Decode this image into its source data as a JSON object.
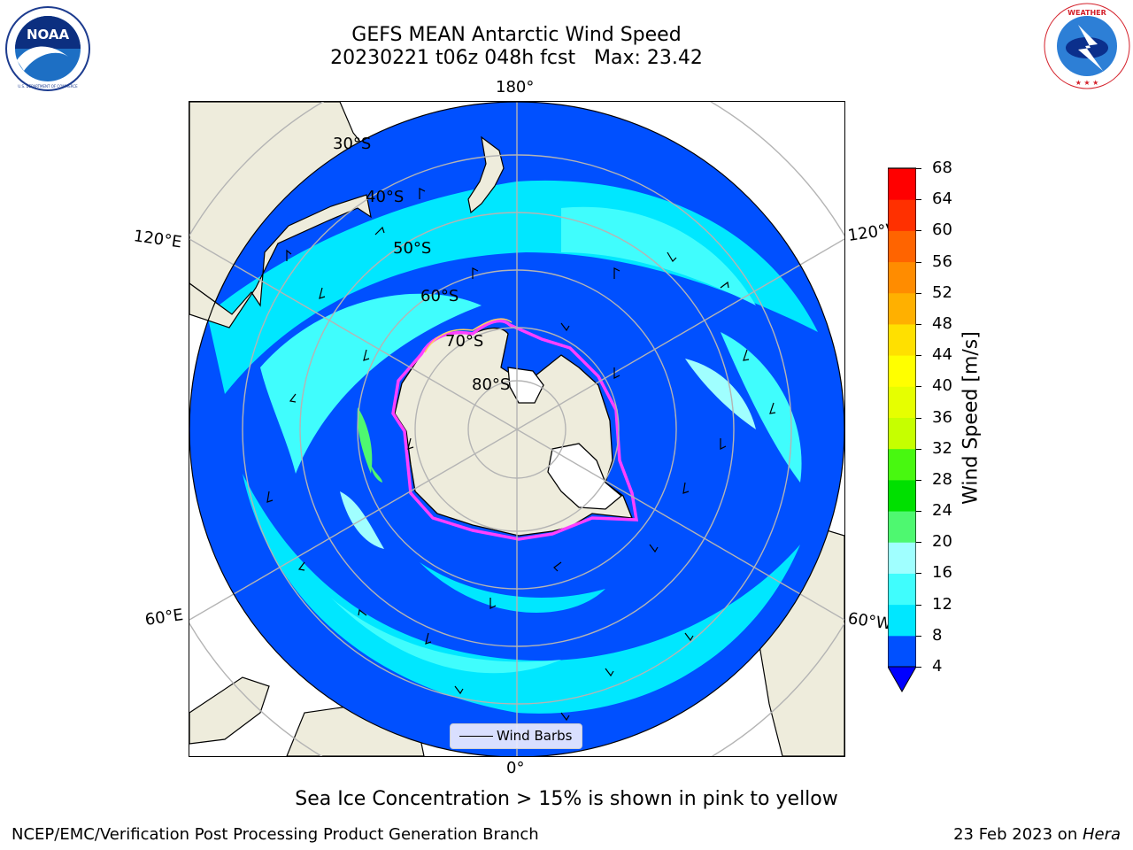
{
  "title": {
    "line1": "GEFS MEAN Antarctic Wind Speed",
    "line2": "20230221 t06z 048h fcst   Max: 23.42"
  },
  "logos": {
    "left": {
      "name": "noaa-logo",
      "text": "NOAA",
      "ring_text": "NATIONAL OCEANIC AND ATMOSPHERIC ADMINISTRATION · U.S. DEPARTMENT OF COMMERCE"
    },
    "right": {
      "name": "nws-logo",
      "ring_text": "NATIONAL WEATHER SERVICE"
    }
  },
  "map": {
    "projection": "south-polar-stereographic",
    "longitude_labels": {
      "top": "180°",
      "bottom": "0°",
      "upper_left": "120°E",
      "upper_right": "120°W",
      "lower_left": "60°E",
      "lower_right": "60°W"
    },
    "latitude_labels": [
      "30°S",
      "40°S",
      "50°S",
      "60°S",
      "70°S",
      "80°S"
    ],
    "legend": {
      "label": "Wind Barbs"
    },
    "colors": {
      "land": "#eeecdc",
      "ice_shelf": "#ffffff",
      "gridline": "#b4b4b4",
      "sea_ice_edge": [
        "#ff40ff",
        "#ffd060"
      ]
    }
  },
  "colorbar": {
    "label": "Wind Speed [m/s]",
    "ticks": [
      "4",
      "8",
      "12",
      "16",
      "20",
      "24",
      "28",
      "32",
      "36",
      "40",
      "44",
      "48",
      "52",
      "56",
      "60",
      "64",
      "68"
    ],
    "colors": [
      "#0050ff",
      "#00e7ff",
      "#40fdfd",
      "#a0ffff",
      "#4ef870",
      "#00e000",
      "#48f810",
      "#c6ff00",
      "#e6ff00",
      "#ffff00",
      "#ffe000",
      "#ffb000",
      "#ff8c00",
      "#ff6400",
      "#ff3000",
      "#ff0000"
    ],
    "under_color": "#0000ff"
  },
  "caption": "Sea Ice Concentration > 15% is shown in pink to yellow",
  "footer": {
    "left": "NCEP/EMC/Verification Post Processing Product Generation Branch",
    "right_date": "23 Feb 2023 on ",
    "right_machine": "Hera"
  }
}
